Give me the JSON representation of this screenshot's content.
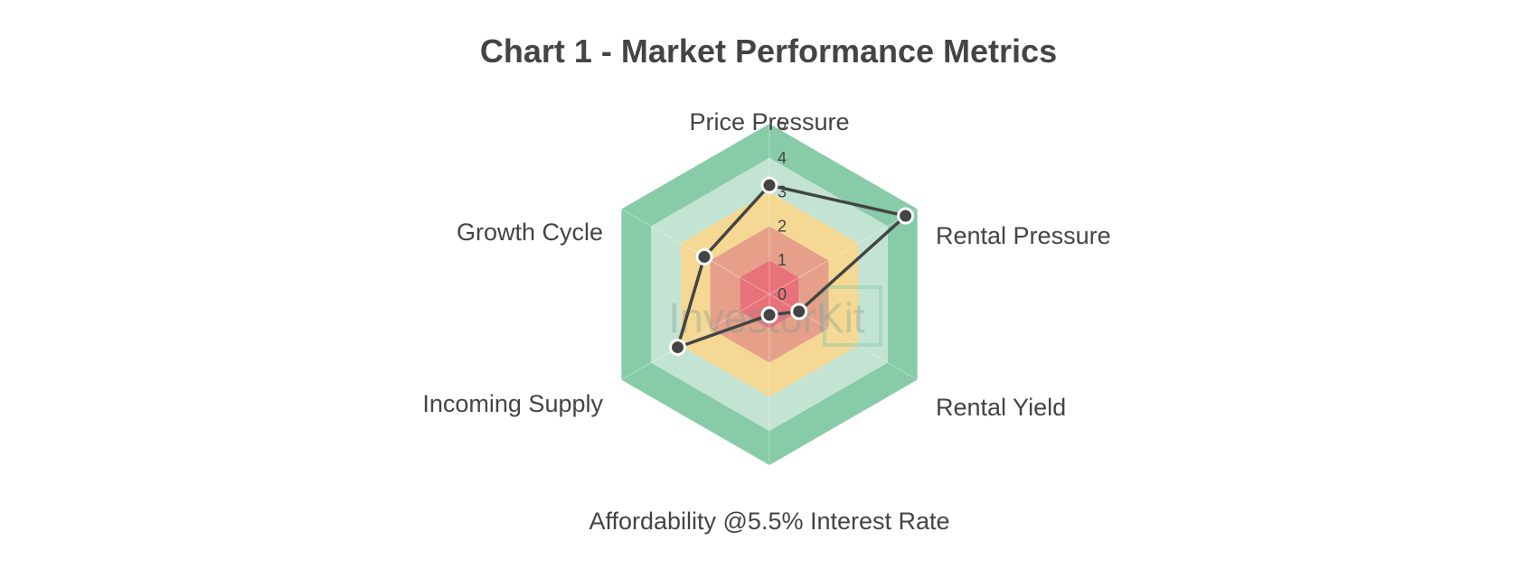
{
  "chart_data": {
    "type": "radar",
    "title": "Chart 1 - Market Performance Metrics",
    "axes": [
      "Price Pressure",
      "Rental Pressure",
      "Rental Yield",
      "Affordability @5.5% Interest Rate",
      "Incoming Supply",
      "Growth Cycle"
    ],
    "rlim": [
      0,
      5
    ],
    "ticks": [
      "0",
      "1",
      "2",
      "3",
      "4",
      "5"
    ],
    "series": [
      {
        "values": [
          3.2,
          4.6,
          1.0,
          0.6,
          3.1,
          2.2
        ]
      }
    ],
    "bands": [
      {
        "from": 0,
        "to": 1,
        "color": "#e8727a"
      },
      {
        "from": 1,
        "to": 2,
        "color": "#e6a08a"
      },
      {
        "from": 2,
        "to": 3,
        "color": "#f4d893"
      },
      {
        "from": 3,
        "to": 4,
        "color": "#c3e3d3"
      },
      {
        "from": 4,
        "to": 5,
        "color": "#88cba8"
      }
    ],
    "series_color": "#444444",
    "watermark": "InvestorKit",
    "grid": false,
    "legend": "none"
  }
}
